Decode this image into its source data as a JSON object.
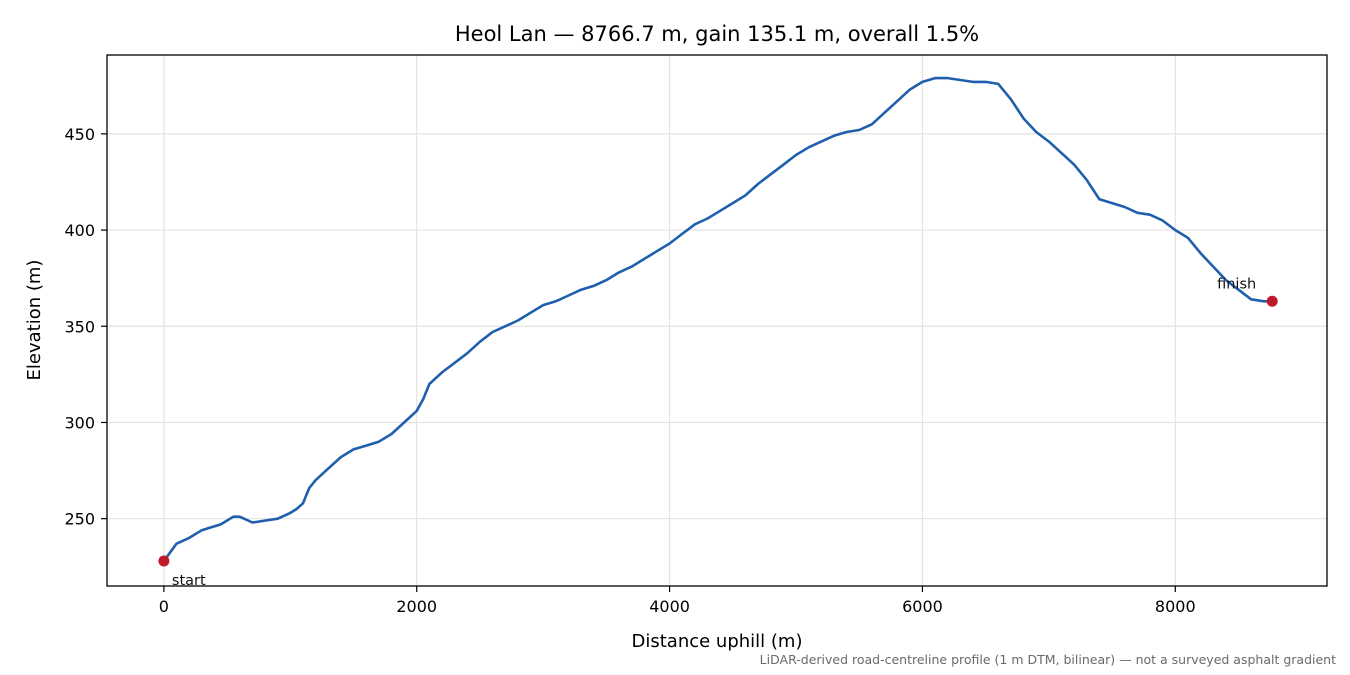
{
  "chart_data": {
    "type": "line",
    "title": "Heol Lan — 8766.7 m, gain 135.1 m, overall 1.5%",
    "xlabel": "Distance uphill (m)",
    "ylabel": "Elevation (m)",
    "xlim": [
      -450,
      9200
    ],
    "ylim": [
      215,
      491
    ],
    "xticks": [
      0,
      2000,
      4000,
      6000,
      8000
    ],
    "yticks": [
      250,
      300,
      350,
      400,
      450
    ],
    "grid": true,
    "line_color": "#1f5fad",
    "marker_color": "#c0192b",
    "series": [
      {
        "x": [
          0,
          100,
          200,
          300,
          350,
          450,
          550,
          600,
          700,
          800,
          900,
          1000,
          1050,
          1100,
          1150,
          1200,
          1300,
          1400,
          1500,
          1600,
          1700,
          1800,
          1900,
          2000,
          2050,
          2100,
          2150,
          2200,
          2300,
          2400,
          2500,
          2600,
          2700,
          2800,
          2900,
          3000,
          3100,
          3200,
          3300,
          3400,
          3500,
          3600,
          3700,
          3800,
          3900,
          4000,
          4100,
          4200,
          4300,
          4400,
          4500,
          4600,
          4700,
          4800,
          4900,
          5000,
          5100,
          5200,
          5300,
          5400,
          5500,
          5600,
          5700,
          5800,
          5900,
          6000,
          6100,
          6200,
          6300,
          6400,
          6500,
          6600,
          6700,
          6800,
          6900,
          7000,
          7100,
          7200,
          7300,
          7400,
          7500,
          7600,
          7700,
          7800,
          7900,
          8000,
          8100,
          8200,
          8300,
          8400,
          8500,
          8600,
          8700,
          8766.7
        ],
        "y": [
          228,
          237,
          240,
          244,
          245,
          247,
          251,
          251,
          248,
          249,
          250,
          253,
          255,
          258,
          266,
          270,
          276,
          282,
          286,
          288,
          290,
          294,
          300,
          306,
          312,
          320,
          323,
          326,
          331,
          336,
          342,
          347,
          350,
          353,
          357,
          361,
          363,
          366,
          369,
          371,
          374,
          378,
          381,
          385,
          389,
          393,
          398,
          403,
          406,
          410,
          414,
          418,
          424,
          429,
          434,
          439,
          443,
          446,
          449,
          451,
          452,
          455,
          461,
          467,
          473,
          477,
          479,
          479,
          478,
          477,
          477,
          476,
          468,
          458,
          451,
          446,
          440,
          434,
          426,
          416,
          414,
          412,
          409,
          408,
          405,
          400,
          396,
          388,
          381,
          374,
          369,
          364,
          363,
          363
        ]
      }
    ],
    "annotations": [
      {
        "text": "start",
        "x": 0,
        "y": 228
      },
      {
        "text": "finish",
        "x": 8766.7,
        "y": 363
      }
    ],
    "footnote": "LiDAR-derived road-centreline profile (1 m DTM, bilinear) — not a surveyed asphalt gradient"
  }
}
